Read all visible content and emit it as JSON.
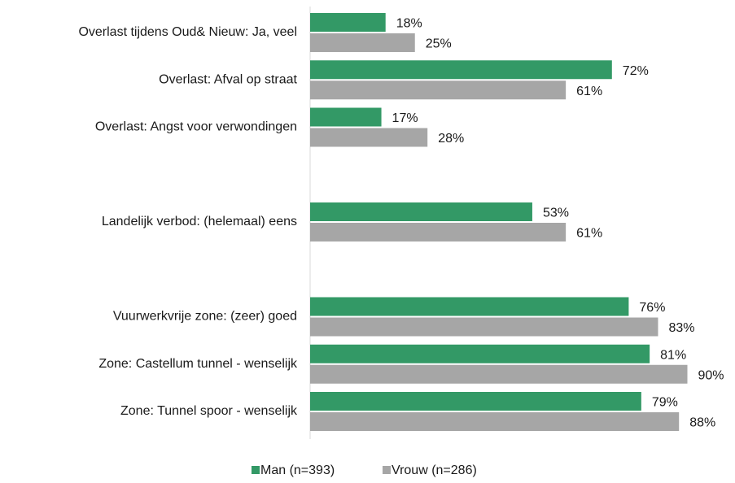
{
  "chart_data": {
    "type": "bar",
    "orientation": "horizontal",
    "categories": [
      "Overlast tijdens Oud& Nieuw: Ja, veel",
      "Overlast: Afval op straat",
      "Overlast: Angst voor verwondingen",
      null,
      "Landelijk verbod: (helemaal) eens",
      null,
      "Vuurwerkvrije zone: (zeer) goed",
      "Zone: Castellum tunnel - wenselijk",
      "Zone: Tunnel spoor - wenselijk"
    ],
    "series": [
      {
        "name": "Man (n=393)",
        "color": "#339966",
        "values": [
          18,
          72,
          17,
          null,
          53,
          null,
          76,
          81,
          79
        ],
        "value_labels": [
          "18%",
          "72%",
          "17%",
          null,
          "53%",
          null,
          "76%",
          "81%",
          "79%"
        ]
      },
      {
        "name": "Vrouw (n=286)",
        "color": "#a6a6a6",
        "values": [
          25,
          61,
          28,
          null,
          61,
          null,
          83,
          90,
          88
        ],
        "value_labels": [
          "25%",
          "61%",
          "28%",
          null,
          "61%",
          null,
          "83%",
          "90%",
          "88%"
        ]
      }
    ],
    "xlim": [
      0,
      100
    ],
    "legend": "bottom"
  }
}
